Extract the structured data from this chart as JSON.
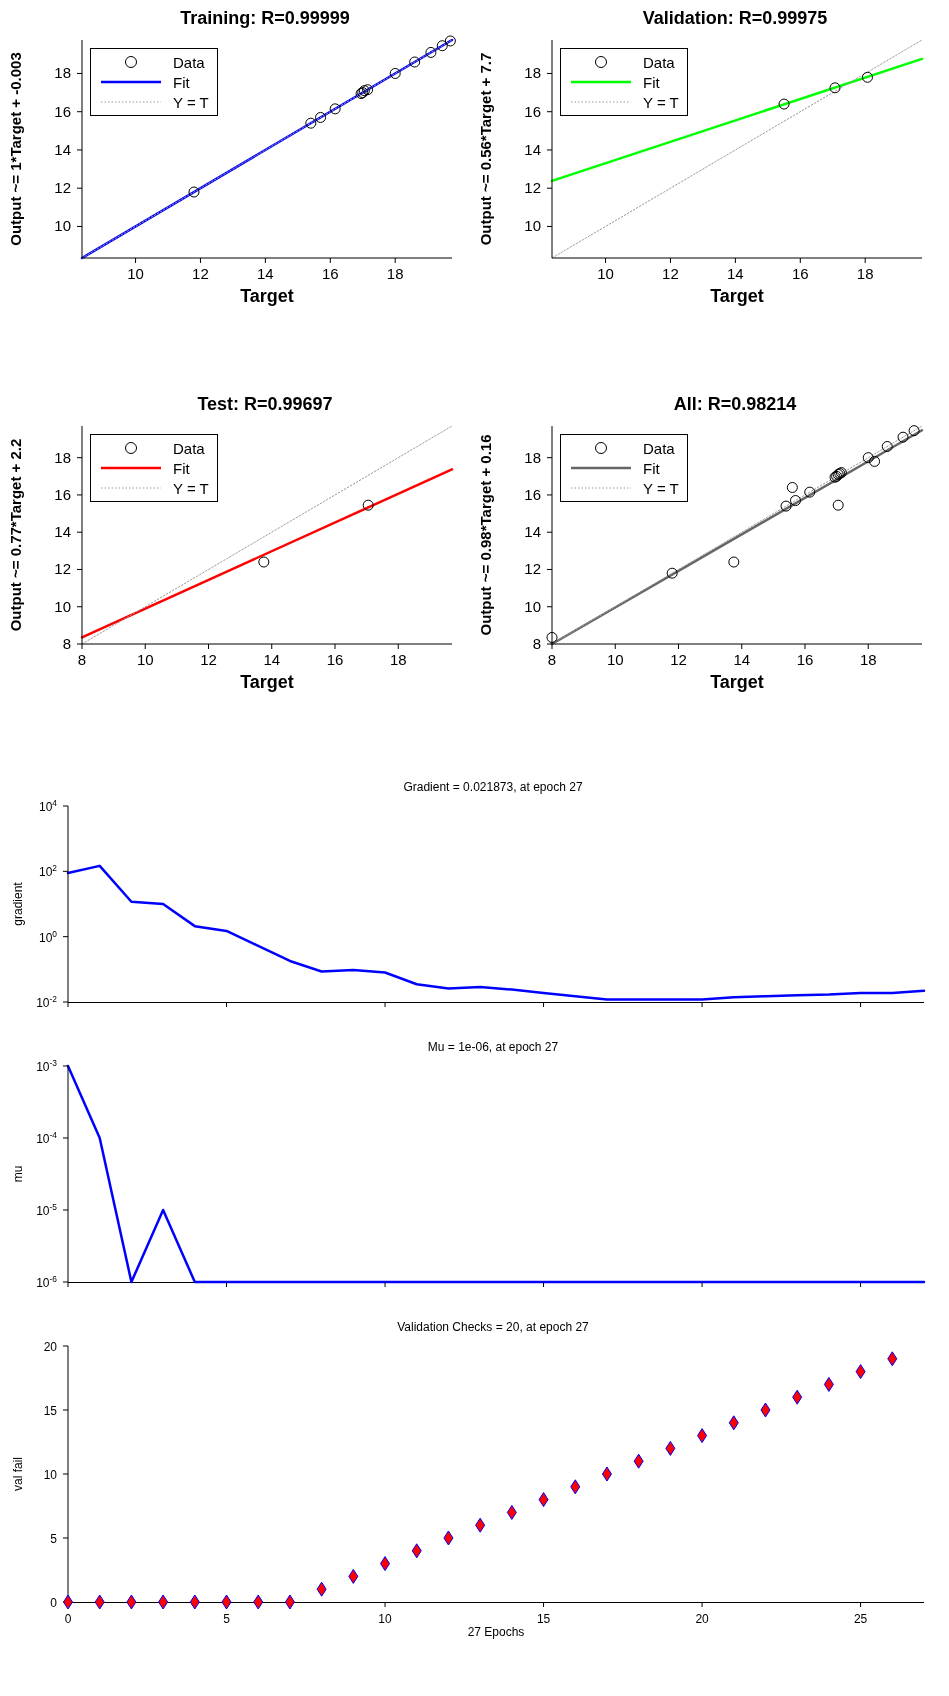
{
  "chart_data": [
    {
      "type": "scatter",
      "title": "Training: R=0.99999",
      "xlabel": "Target",
      "ylabel": "Output ~= 1*Target + -0.003",
      "xlim": [
        8.35,
        19.75
      ],
      "ylim": [
        8.35,
        19.75
      ],
      "xticks": [
        10,
        12,
        14,
        16,
        18
      ],
      "yticks": [
        10,
        12,
        14,
        16,
        18
      ],
      "legend": "top left",
      "series": [
        {
          "name": "Data",
          "type": "scatter",
          "marker": "circle",
          "color": "#000000",
          "x": [
            11.8,
            15.4,
            15.7,
            16.15,
            16.95,
            17.0,
            17.05,
            17.15,
            18.0,
            18.6,
            19.1,
            19.45,
            19.7
          ],
          "values": [
            11.8,
            15.4,
            15.7,
            16.15,
            16.95,
            17.0,
            17.1,
            17.15,
            18.0,
            18.6,
            19.1,
            19.45,
            19.7
          ]
        },
        {
          "name": "Fit",
          "type": "line",
          "marker": "none",
          "color": "#0000ff",
          "x": [
            8.35,
            19.75
          ],
          "values": [
            8.35,
            19.75
          ]
        },
        {
          "name": "Y = T",
          "type": "line",
          "marker": "none",
          "line_style": "dotted",
          "color": "#999999",
          "x": [
            8.35,
            19.75
          ],
          "values": [
            8.35,
            19.75
          ]
        }
      ]
    },
    {
      "type": "scatter",
      "title": "Validation: R=0.99975",
      "xlabel": "Target",
      "ylabel": "Output ~= 0.56*Target + 7.7",
      "xlim": [
        8.35,
        19.75
      ],
      "ylim": [
        8.35,
        19.75
      ],
      "xticks": [
        10,
        12,
        14,
        16,
        18
      ],
      "yticks": [
        10,
        12,
        14,
        16,
        18
      ],
      "legend": "top left",
      "series": [
        {
          "name": "Data",
          "type": "scatter",
          "marker": "circle",
          "color": "#000000",
          "x": [
            15.5,
            17.07,
            18.07
          ],
          "values": [
            16.4,
            17.25,
            17.8
          ]
        },
        {
          "name": "Fit",
          "type": "line",
          "marker": "none",
          "color": "#00ff00",
          "x": [
            8.35,
            19.75
          ],
          "values": [
            12.38,
            18.76
          ]
        },
        {
          "name": "Y = T",
          "type": "line",
          "marker": "none",
          "line_style": "dotted",
          "color": "#999999",
          "x": [
            8.35,
            19.75
          ],
          "values": [
            8.35,
            19.75
          ]
        }
      ]
    },
    {
      "type": "scatter",
      "title": "Test: R=0.99697",
      "xlabel": "Target",
      "ylabel": "Output ~= 0.77*Target + 2.2",
      "xlim": [
        8,
        19.7
      ],
      "ylim": [
        8,
        19.7
      ],
      "xticks": [
        8,
        10,
        12,
        14,
        16,
        18
      ],
      "yticks": [
        8,
        10,
        12,
        14,
        16,
        18
      ],
      "legend": "top left",
      "series": [
        {
          "name": "Data",
          "type": "scatter",
          "marker": "circle",
          "color": "#000000",
          "x": [
            13.75,
            17.05
          ],
          "values": [
            12.4,
            15.45
          ]
        },
        {
          "name": "Fit",
          "type": "line",
          "marker": "none",
          "color": "#ff0000",
          "x": [
            8,
            19.7
          ],
          "values": [
            8.36,
            17.37
          ]
        },
        {
          "name": "Y = T",
          "type": "line",
          "marker": "none",
          "line_style": "dotted",
          "color": "#999999",
          "x": [
            8,
            19.7
          ],
          "values": [
            8,
            19.7
          ]
        }
      ]
    },
    {
      "type": "scatter",
      "title": "All: R=0.98214",
      "xlabel": "Target",
      "ylabel": "Output ~= 0.98*Target + 0.16",
      "xlim": [
        8,
        19.7
      ],
      "ylim": [
        8,
        19.7
      ],
      "xticks": [
        8,
        10,
        12,
        14,
        16,
        18
      ],
      "yticks": [
        8,
        10,
        12,
        14,
        16,
        18
      ],
      "legend": "top left",
      "series": [
        {
          "name": "Data",
          "type": "scatter",
          "marker": "circle",
          "color": "#000000",
          "x": [
            8.0,
            11.8,
            13.75,
            15.4,
            15.6,
            15.7,
            16.15,
            16.95,
            17.0,
            17.05,
            17.1,
            17.15,
            17.05,
            18.0,
            18.2,
            18.6,
            19.1,
            19.45
          ],
          "values": [
            8.35,
            11.8,
            12.4,
            15.4,
            16.4,
            15.7,
            16.15,
            16.95,
            17.0,
            17.1,
            17.15,
            17.2,
            15.45,
            18.0,
            17.8,
            18.6,
            19.1,
            19.45
          ]
        },
        {
          "name": "Fit",
          "type": "line",
          "marker": "none",
          "color": "#666666",
          "x": [
            8,
            19.7
          ],
          "values": [
            8.0,
            19.47
          ]
        },
        {
          "name": "Y = T",
          "type": "line",
          "marker": "none",
          "line_style": "dotted",
          "color": "#999999",
          "x": [
            8,
            19.7
          ],
          "values": [
            8,
            19.7
          ]
        }
      ]
    },
    {
      "type": "line",
      "title": "Gradient = 0.021873, at epoch 27",
      "ylabel": "gradient",
      "log": "y",
      "tick_labels": "y",
      "xlim": [
        0,
        27
      ],
      "ylim": [
        0.01,
        10000
      ],
      "xticks": [
        0,
        5,
        10,
        15,
        20,
        25
      ],
      "yticks": [
        {
          "value": 0.01,
          "label": "10$^{-2}$"
        },
        {
          "value": 1,
          "label": "10$^{0}$"
        },
        {
          "value": 100,
          "label": "10$^{2}$"
        },
        {
          "value": 10000,
          "label": "10$^{4}$"
        }
      ],
      "marker": "none",
      "series": [
        {
          "color": "#0000ff",
          "x": [
            0,
            1,
            2,
            3,
            4,
            5,
            6,
            7,
            8,
            9,
            10,
            11,
            12,
            13,
            14,
            15,
            16,
            17,
            18,
            19,
            20,
            21,
            22,
            23,
            24,
            25,
            26,
            27
          ],
          "values": [
            89,
            147,
            11.7,
            10,
            2.1,
            1.5,
            0.52,
            0.18,
            0.086,
            0.096,
            0.08,
            0.035,
            0.026,
            0.029,
            0.024,
            0.019,
            0.015,
            0.012,
            0.012,
            0.012,
            0.012,
            0.014,
            0.015,
            0.016,
            0.017,
            0.019,
            0.019,
            0.022
          ]
        }
      ]
    },
    {
      "type": "line",
      "title": "Mu = 1e-06, at epoch 27",
      "ylabel": "mu",
      "log": "y",
      "tick_labels": "y",
      "xlim": [
        0,
        27
      ],
      "ylim": [
        1e-06,
        0.001
      ],
      "xticks": [
        0,
        5,
        10,
        15,
        20,
        25
      ],
      "yticks": [
        {
          "value": 1e-06,
          "label": "10$^{-6}$"
        },
        {
          "value": 1e-05,
          "label": "10$^{-5}$"
        },
        {
          "value": 0.0001,
          "label": "10$^{-4}$"
        },
        {
          "value": 0.001,
          "label": "10$^{-3}$"
        }
      ],
      "marker": "none",
      "series": [
        {
          "color": "#0000ff",
          "x": [
            0,
            1,
            2,
            3,
            4,
            5,
            6,
            7,
            8,
            9,
            10,
            11,
            12,
            13,
            14,
            15,
            16,
            17,
            18,
            19,
            20,
            21,
            22,
            23,
            24,
            25,
            26,
            27
          ],
          "values": [
            0.001,
            0.0001,
            1e-06,
            1e-05,
            1e-06,
            1e-06,
            1e-06,
            1e-06,
            1e-06,
            1e-06,
            1e-06,
            1e-06,
            1e-06,
            1e-06,
            1e-06,
            1e-06,
            1e-06,
            1e-06,
            1e-06,
            1e-06,
            1e-06,
            1e-06,
            1e-06,
            1e-06,
            1e-06,
            1e-06,
            1e-06,
            1e-06
          ]
        }
      ]
    },
    {
      "type": "scatter",
      "title": "Validation Checks = 20, at epoch 27",
      "xlabel": "27 Epochs",
      "ylabel": "val fail",
      "marker": "diamond",
      "xlim": [
        0,
        27
      ],
      "ylim": [
        0,
        20
      ],
      "xticks": [
        0,
        5,
        10,
        15,
        20,
        25
      ],
      "yticks": [
        0,
        5,
        10,
        15,
        20
      ],
      "series": [
        {
          "color": "#ff0000",
          "x": [
            0,
            1,
            2,
            3,
            4,
            5,
            6,
            7,
            8,
            9,
            10,
            11,
            12,
            13,
            14,
            15,
            16,
            17,
            18,
            19,
            20,
            21,
            22,
            23,
            24,
            25,
            26
          ],
          "values": [
            0,
            0,
            0,
            0,
            0,
            0,
            0,
            0,
            1,
            2,
            3,
            4,
            5,
            6,
            7,
            8,
            9,
            10,
            11,
            12,
            13,
            14,
            15,
            16,
            17,
            18,
            19
          ]
        }
      ]
    }
  ]
}
